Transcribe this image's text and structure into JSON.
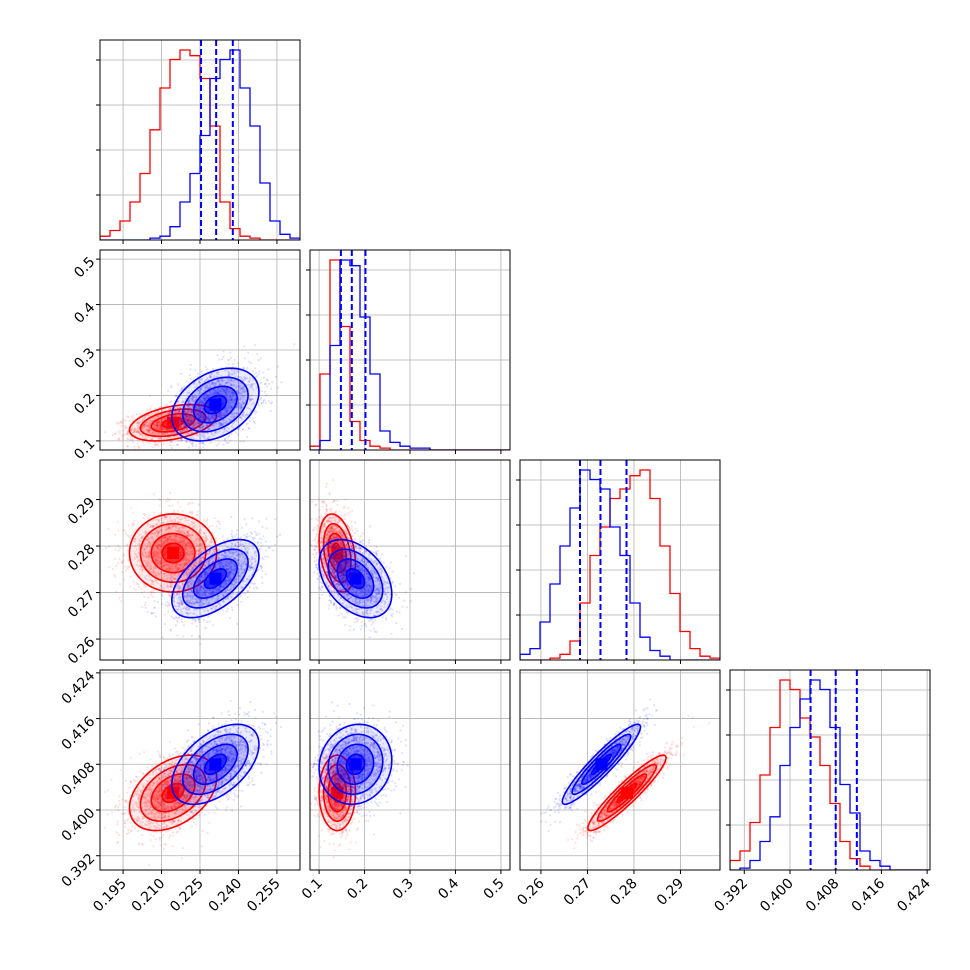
{
  "colors": {
    "red": "#ff0000",
    "blue": "#0000ff",
    "grid": "#b0b0b0",
    "axis": "#000000"
  },
  "chart_data": {
    "type": "corner",
    "parameters": [
      {
        "range": [
          0.186,
          0.264
        ],
        "ticks": [
          0.195,
          0.21,
          0.225,
          0.24,
          0.255
        ],
        "tick_labels": [
          "0.195",
          "0.210",
          "0.225",
          "0.240",
          "0.255"
        ]
      },
      {
        "range": [
          0.08,
          0.52
        ],
        "ticks": [
          0.1,
          0.2,
          0.3,
          0.4,
          0.5
        ],
        "tick_labels": [
          "0.1",
          "0.2",
          "0.3",
          "0.4",
          "0.5"
        ]
      },
      {
        "range": [
          0.2555,
          0.2985
        ],
        "ticks": [
          0.26,
          0.27,
          0.28,
          0.29
        ],
        "tick_labels": [
          "0.26",
          "0.27",
          "0.28",
          "0.29"
        ]
      },
      {
        "range": [
          0.3895,
          0.4245
        ],
        "ticks": [
          0.392,
          0.4,
          0.408,
          0.416,
          0.424
        ],
        "tick_labels": [
          "0.392",
          "0.400",
          "0.408",
          "0.416",
          "0.424"
        ]
      }
    ],
    "series": [
      {
        "color": "red",
        "mean": [
          0.2145,
          0.14,
          0.2785,
          0.403
        ],
        "sd": [
          0.0085,
          0.02,
          0.0042,
          0.0033
        ],
        "correlations": {
          "1-0": 0.4,
          "2-0": 0.0,
          "2-1": -0.3,
          "3-0": 0.4,
          "3-1": 0.0,
          "3-2": 0.93
        }
      },
      {
        "color": "blue",
        "mean": [
          0.231,
          0.18,
          0.273,
          0.408
        ],
        "sd": [
          0.0085,
          0.04,
          0.0042,
          0.0035
        ],
        "correlations": {
          "1-0": 0.35,
          "2-0": 0.55,
          "2-1": -0.4,
          "3-0": 0.5,
          "3-1": 0.1,
          "3-2": 0.93
        }
      }
    ],
    "histograms": {
      "0": {
        "bins": [
          0.186,
          0.264
        ],
        "red": [
          0.02,
          0.05,
          0.1,
          0.2,
          0.35,
          0.58,
          0.8,
          0.95,
          1.0,
          0.97,
          0.85,
          0.6,
          0.2,
          0.06,
          0.02,
          0.01,
          0,
          0,
          0,
          0
        ],
        "blue": [
          0,
          0,
          0,
          0,
          0,
          0.01,
          0.02,
          0.07,
          0.2,
          0.35,
          0.55,
          0.85,
          0.95,
          1.0,
          0.8,
          0.6,
          0.3,
          0.1,
          0.03,
          0.01
        ]
      },
      "1": {
        "bins": [
          0.08,
          0.52
        ],
        "red": [
          0.02,
          0.4,
          1.0,
          0.65,
          0.15,
          0.05,
          0.02,
          0.01,
          0,
          0,
          0,
          0,
          0,
          0,
          0,
          0,
          0,
          0,
          0,
          0
        ],
        "blue": [
          0,
          0.05,
          0.55,
          1.0,
          0.97,
          0.7,
          0.4,
          0.1,
          0.04,
          0.02,
          0.01,
          0.01,
          0,
          0,
          0,
          0,
          0,
          0,
          0,
          0
        ],
        "quantile_lines": [
          0.148,
          0.172,
          0.202
        ]
      },
      "2": {
        "bins": [
          0.2555,
          0.2985
        ],
        "red": [
          0,
          0,
          0,
          0.01,
          0.03,
          0.1,
          0.3,
          0.55,
          0.7,
          0.85,
          0.9,
          0.97,
          1.0,
          0.85,
          0.6,
          0.35,
          0.15,
          0.06,
          0.02,
          0.01
        ],
        "blue": [
          0.03,
          0.06,
          0.2,
          0.4,
          0.6,
          0.8,
          1.0,
          0.95,
          0.9,
          0.7,
          0.55,
          0.3,
          0.12,
          0.05,
          0.02,
          0,
          0,
          0,
          0,
          0
        ]
      },
      "3": {
        "bins": [
          0.3895,
          0.4245
        ],
        "red": [
          0.05,
          0.1,
          0.25,
          0.5,
          0.75,
          1.0,
          0.95,
          0.8,
          0.7,
          0.55,
          0.35,
          0.15,
          0.06,
          0.02,
          0,
          0,
          0,
          0,
          0,
          0
        ],
        "blue": [
          0,
          0.01,
          0.05,
          0.15,
          0.28,
          0.55,
          0.75,
          0.9,
          1.0,
          0.95,
          0.75,
          0.45,
          0.3,
          0.1,
          0.05,
          0.02,
          0,
          0,
          0,
          0
        ]
      }
    },
    "quantile_lines": {
      "0": [
        0.2254,
        0.2313,
        0.2378
      ],
      "1": [
        0.148,
        0.172,
        0.202
      ],
      "2": [
        0.2684,
        0.2728,
        0.2784
      ],
      "3": [
        0.4036,
        0.408,
        0.4117
      ]
    },
    "grid": true
  }
}
